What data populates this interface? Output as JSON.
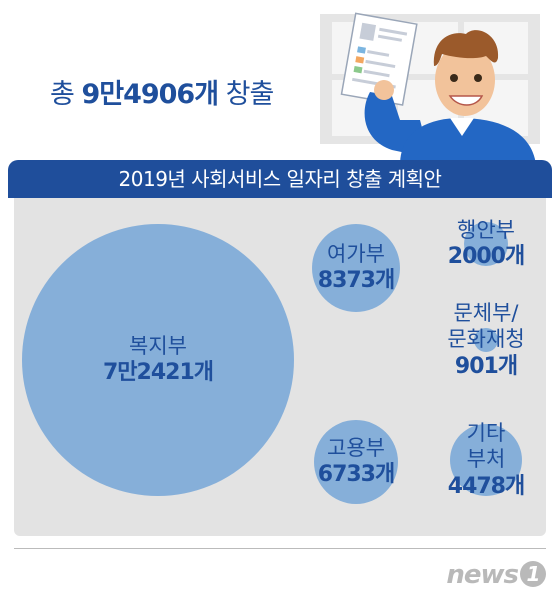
{
  "headline": {
    "prefix": "총 ",
    "value": "9만4906개",
    "suffix": " 창출"
  },
  "chart_data": {
    "type": "bubble",
    "title": "2019년 사회서비스 일자리 창출 계획안",
    "series": [
      {
        "name": "복지부",
        "label": "7만2421개",
        "value": 72421
      },
      {
        "name": "여가부",
        "label": "8373개",
        "value": 8373
      },
      {
        "name": "행안부",
        "label": "2000개",
        "value": 2000
      },
      {
        "name": "문체부/\n문화재청",
        "label": "901개",
        "value": 901
      },
      {
        "name": "고용부",
        "label": "6733개",
        "value": 6733
      },
      {
        "name": "기타\n부처",
        "label": "4478개",
        "value": 4478
      }
    ],
    "bubble_color": "#86afd9",
    "text_color": "#1f4f9c"
  },
  "logo": {
    "text": "news",
    "mark": "1"
  },
  "colors": {
    "banner": "#1f4e9b",
    "panel": "#e3e3e3"
  }
}
